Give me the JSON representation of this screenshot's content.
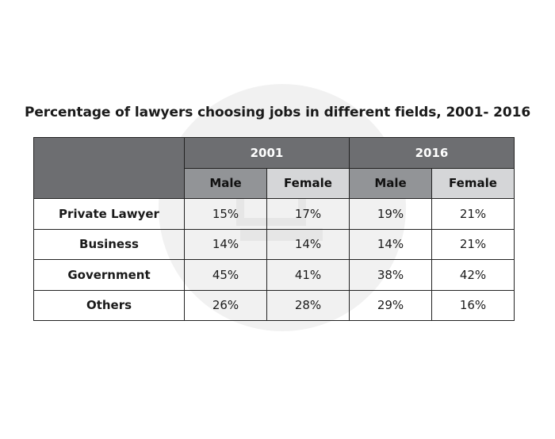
{
  "chart_data": {
    "type": "table",
    "title": "Percentage of lawyers choosing jobs in different fields, 2001- 2016",
    "years": [
      "2001",
      "2016"
    ],
    "genders": [
      "Male",
      "Female",
      "Male",
      "Female"
    ],
    "rows": [
      {
        "label": "Private Lawyer",
        "values": [
          "15%",
          "17%",
          "19%",
          "21%"
        ]
      },
      {
        "label": "Business",
        "values": [
          "14%",
          "14%",
          "14%",
          "21%"
        ]
      },
      {
        "label": "Government",
        "values": [
          "45%",
          "41%",
          "38%",
          "42%"
        ]
      },
      {
        "label": "Others",
        "values": [
          "26%",
          "28%",
          "29%",
          "16%"
        ]
      }
    ],
    "numeric": {
      "columns": [
        "2001 Male",
        "2001 Female",
        "2016 Male",
        "2016 Female"
      ],
      "Private Lawyer": [
        15,
        17,
        19,
        21
      ],
      "Business": [
        14,
        14,
        14,
        21
      ],
      "Government": [
        45,
        41,
        38,
        42
      ],
      "Others": [
        26,
        28,
        29,
        16
      ]
    }
  },
  "colors": {
    "header_dark": "#6d6e71",
    "subheader_dark": "#929497",
    "subheader_light": "#d5d6d8",
    "watermark": "#f1f1f1"
  }
}
